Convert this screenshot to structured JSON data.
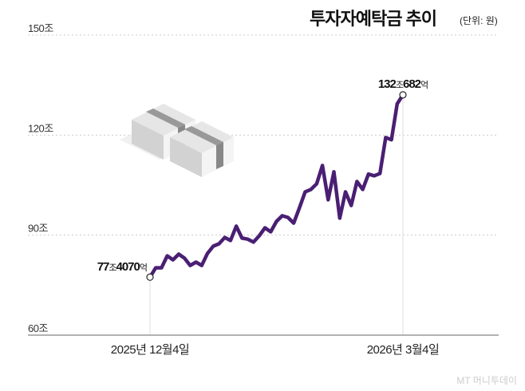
{
  "chart_data": {
    "type": "line",
    "title": "투자자예탁금 추이",
    "unit_label": "(단위: 원)",
    "y_ticks": [
      "150조",
      "120조",
      "90조",
      "60조"
    ],
    "y_tick_values": [
      150,
      120,
      90,
      60
    ],
    "ylim": [
      60,
      150
    ],
    "grid": true,
    "x_labels": [
      "2025년 12월4일",
      "2026년 3월4일"
    ],
    "series": [
      {
        "color": "#4a1f73",
        "values": [
          77.4,
          80.2,
          80.2,
          83.8,
          82.6,
          84.3,
          83.1,
          80.9,
          81.9,
          80.9,
          84.5,
          86.7,
          87.4,
          89.3,
          88.4,
          92.7,
          89.1,
          88.8,
          87.9,
          89.8,
          92.2,
          91.0,
          94.1,
          95.8,
          95.3,
          93.6,
          98.2,
          103.0,
          103.7,
          105.4,
          110.9,
          100.6,
          109.0,
          95.1,
          103.0,
          98.9,
          106.1,
          103.7,
          108.3,
          107.8,
          108.5,
          119.3,
          118.6,
          129.4,
          132.07
        ]
      }
    ],
    "annotations": {
      "start": {
        "main1": "77",
        "small1": "조",
        "main2": "4070",
        "small2": "억"
      },
      "end": {
        "main1": "132",
        "small1": "조",
        "main2": "682",
        "small2": "억"
      }
    }
  },
  "source": "MT 머니투데이"
}
